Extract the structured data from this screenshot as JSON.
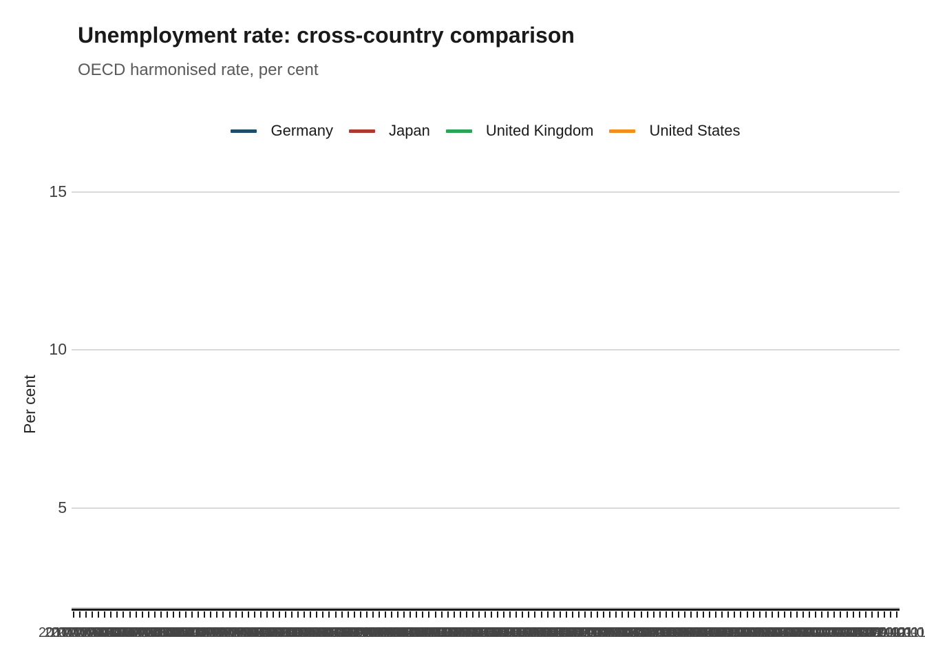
{
  "header": {
    "title": "Unemployment rate: cross-country comparison",
    "subtitle": "OECD harmonised rate, per cent"
  },
  "legend": {
    "items": [
      {
        "label": "Germany",
        "color": "#1f4e68"
      },
      {
        "label": "Japan",
        "color": "#b0392f"
      },
      {
        "label": "United Kingdom",
        "color": "#2aa558"
      },
      {
        "label": "United States",
        "color": "#f18e1c"
      }
    ]
  },
  "y_axis": {
    "label": "Per cent",
    "tick_values": [
      5,
      10,
      15
    ]
  },
  "x_axis": {
    "tick_labels": [
      "2010-01-01",
      "2010-02-01",
      "2010-03-01",
      "2010-04-01",
      "2010-05-01",
      "2010-06-01",
      "2010-07-01",
      "2010-08-01",
      "2010-09-01",
      "2010-10-01",
      "2010-11-01",
      "2010-12-01",
      "2011-01-01",
      "2011-02-01",
      "2011-03-01",
      "2011-04-01",
      "2011-05-01",
      "2011-06-01",
      "2011-07-01",
      "2011-08-01",
      "2011-09-01",
      "2011-10-01",
      "2011-11-01",
      "2011-12-01",
      "2012-01-01",
      "2012-02-01",
      "2012-03-01",
      "2012-04-01",
      "2012-05-01",
      "2012-06-01",
      "2012-07-01",
      "2012-08-01",
      "2012-09-01",
      "2012-10-01",
      "2012-11-01",
      "2012-12-01",
      "2013-01-01",
      "2013-02-01",
      "2013-03-01",
      "2013-04-01",
      "2013-05-01",
      "2013-06-01",
      "2013-07-01",
      "2013-08-01",
      "2013-09-01",
      "2013-10-01",
      "2013-11-01",
      "2013-12-01",
      "2014-01-01",
      "2014-02-01",
      "2014-03-01",
      "2014-04-01",
      "2014-05-01",
      "2014-06-01",
      "2014-07-01",
      "2014-08-01",
      "2014-09-01",
      "2014-10-01",
      "2014-11-01",
      "2014-12-01",
      "2015-01-01",
      "2015-02-01",
      "2015-03-01",
      "2015-04-01",
      "2015-05-01",
      "2015-06-01",
      "2015-07-01",
      "2015-08-01",
      "2015-09-01",
      "2015-10-01",
      "2015-11-01",
      "2015-12-01",
      "2016-01-01",
      "2016-02-01",
      "2016-03-01",
      "2016-04-01",
      "2016-05-01",
      "2016-06-01",
      "2016-07-01",
      "2016-08-01",
      "2016-09-01",
      "2016-10-01",
      "2016-11-01",
      "2016-12-01",
      "2017-01-01",
      "2017-02-01",
      "2017-03-01",
      "2017-04-01",
      "2017-05-01",
      "2017-06-01",
      "2017-07-01",
      "2017-08-01",
      "2017-09-01",
      "2017-10-01",
      "2017-11-01",
      "2017-12-01",
      "2018-01-01",
      "2018-02-01",
      "2018-03-01",
      "2018-04-01",
      "2018-05-01",
      "2018-06-01",
      "2018-07-01",
      "2018-08-01",
      "2018-09-01",
      "2018-10-01",
      "2018-11-01",
      "2018-12-01",
      "2019-01-01",
      "2019-02-01",
      "2019-03-01",
      "2019-04-01",
      "2019-05-01",
      "2019-06-01",
      "2019-07-01",
      "2019-08-01",
      "2019-09-01",
      "2019-10-01",
      "2019-11-01",
      "2019-12-01",
      "2020-01-01",
      "2020-02-01",
      "2020-03-01",
      "2020-04-01",
      "2020-05-01",
      "2020-06-01",
      "2020-07-01",
      "2020-08-01",
      "2020-09-01",
      "2020-10-01",
      "2020-11-01",
      "2020-12-01",
      "2021-01-01"
    ]
  },
  "chart_data": {
    "type": "line",
    "title": "Unemployment rate: cross-country comparison",
    "subtitle": "OECD harmonised rate, per cent",
    "xlabel": "",
    "ylabel": "Per cent",
    "y_ticks": [
      5,
      10,
      15
    ],
    "ylim": [
      1.7,
      15.6
    ],
    "grid": "horizontal-major-only",
    "legend_position": "top-center",
    "x_tick_count": 133,
    "x_labels_overlap_illegibly": true,
    "visible_data_lines": "none",
    "series": [
      {
        "name": "Germany",
        "color": "#1f4e68",
        "values": []
      },
      {
        "name": "Japan",
        "color": "#b0392f",
        "values": []
      },
      {
        "name": "United Kingdom",
        "color": "#2aa558",
        "values": []
      },
      {
        "name": "United States",
        "color": "#f18e1c",
        "values": []
      }
    ]
  }
}
